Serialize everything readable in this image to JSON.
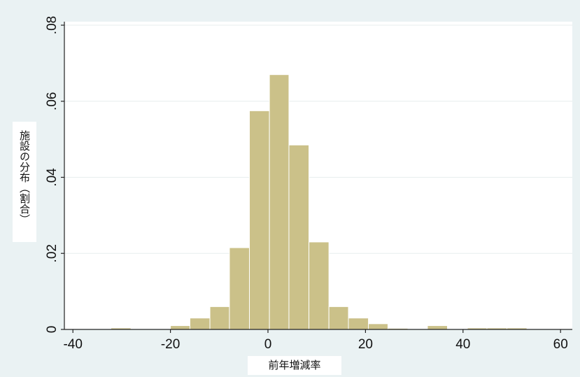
{
  "chart_data": {
    "type": "histogram",
    "xlabel": "前年増減率",
    "ylabel": "施設の分布（割合）",
    "xlim": [
      -40,
      60
    ],
    "ylim": [
      0,
      0.08
    ],
    "xticks": [
      -40,
      -20,
      0,
      20,
      40,
      60
    ],
    "xtick_labels": [
      "-40",
      "-20",
      "0",
      "20",
      "40",
      "60"
    ],
    "yticks": [
      0,
      0.02,
      0.04,
      0.06,
      0.08
    ],
    "ytick_labels": [
      "0",
      ".02",
      ".04",
      ".06",
      ".08"
    ],
    "ygrid": true,
    "bar_color": "#cbc189",
    "bar_edge_color": "#ffffff",
    "bins": [
      {
        "x0": -32.2,
        "x1": -28.1,
        "value": 0.0004
      },
      {
        "x0": -20.0,
        "x1": -16.0,
        "value": 0.001
      },
      {
        "x0": -16.0,
        "x1": -11.9,
        "value": 0.003
      },
      {
        "x0": -11.9,
        "x1": -7.9,
        "value": 0.006
      },
      {
        "x0": -7.9,
        "x1": -3.8,
        "value": 0.0215
      },
      {
        "x0": -3.8,
        "x1": 0.3,
        "value": 0.0575
      },
      {
        "x0": 0.3,
        "x1": 4.3,
        "value": 0.067
      },
      {
        "x0": 4.3,
        "x1": 8.4,
        "value": 0.0485
      },
      {
        "x0": 8.4,
        "x1": 12.5,
        "value": 0.023
      },
      {
        "x0": 12.5,
        "x1": 16.5,
        "value": 0.006
      },
      {
        "x0": 16.5,
        "x1": 20.6,
        "value": 0.003
      },
      {
        "x0": 20.6,
        "x1": 24.6,
        "value": 0.0015
      },
      {
        "x0": 24.6,
        "x1": 28.7,
        "value": 0.0003
      },
      {
        "x0": 32.7,
        "x1": 36.8,
        "value": 0.001
      },
      {
        "x0": 40.9,
        "x1": 44.9,
        "value": 0.0004
      },
      {
        "x0": 44.9,
        "x1": 49.0,
        "value": 0.0004
      },
      {
        "x0": 49.0,
        "x1": 53.1,
        "value": 0.0004
      }
    ]
  }
}
